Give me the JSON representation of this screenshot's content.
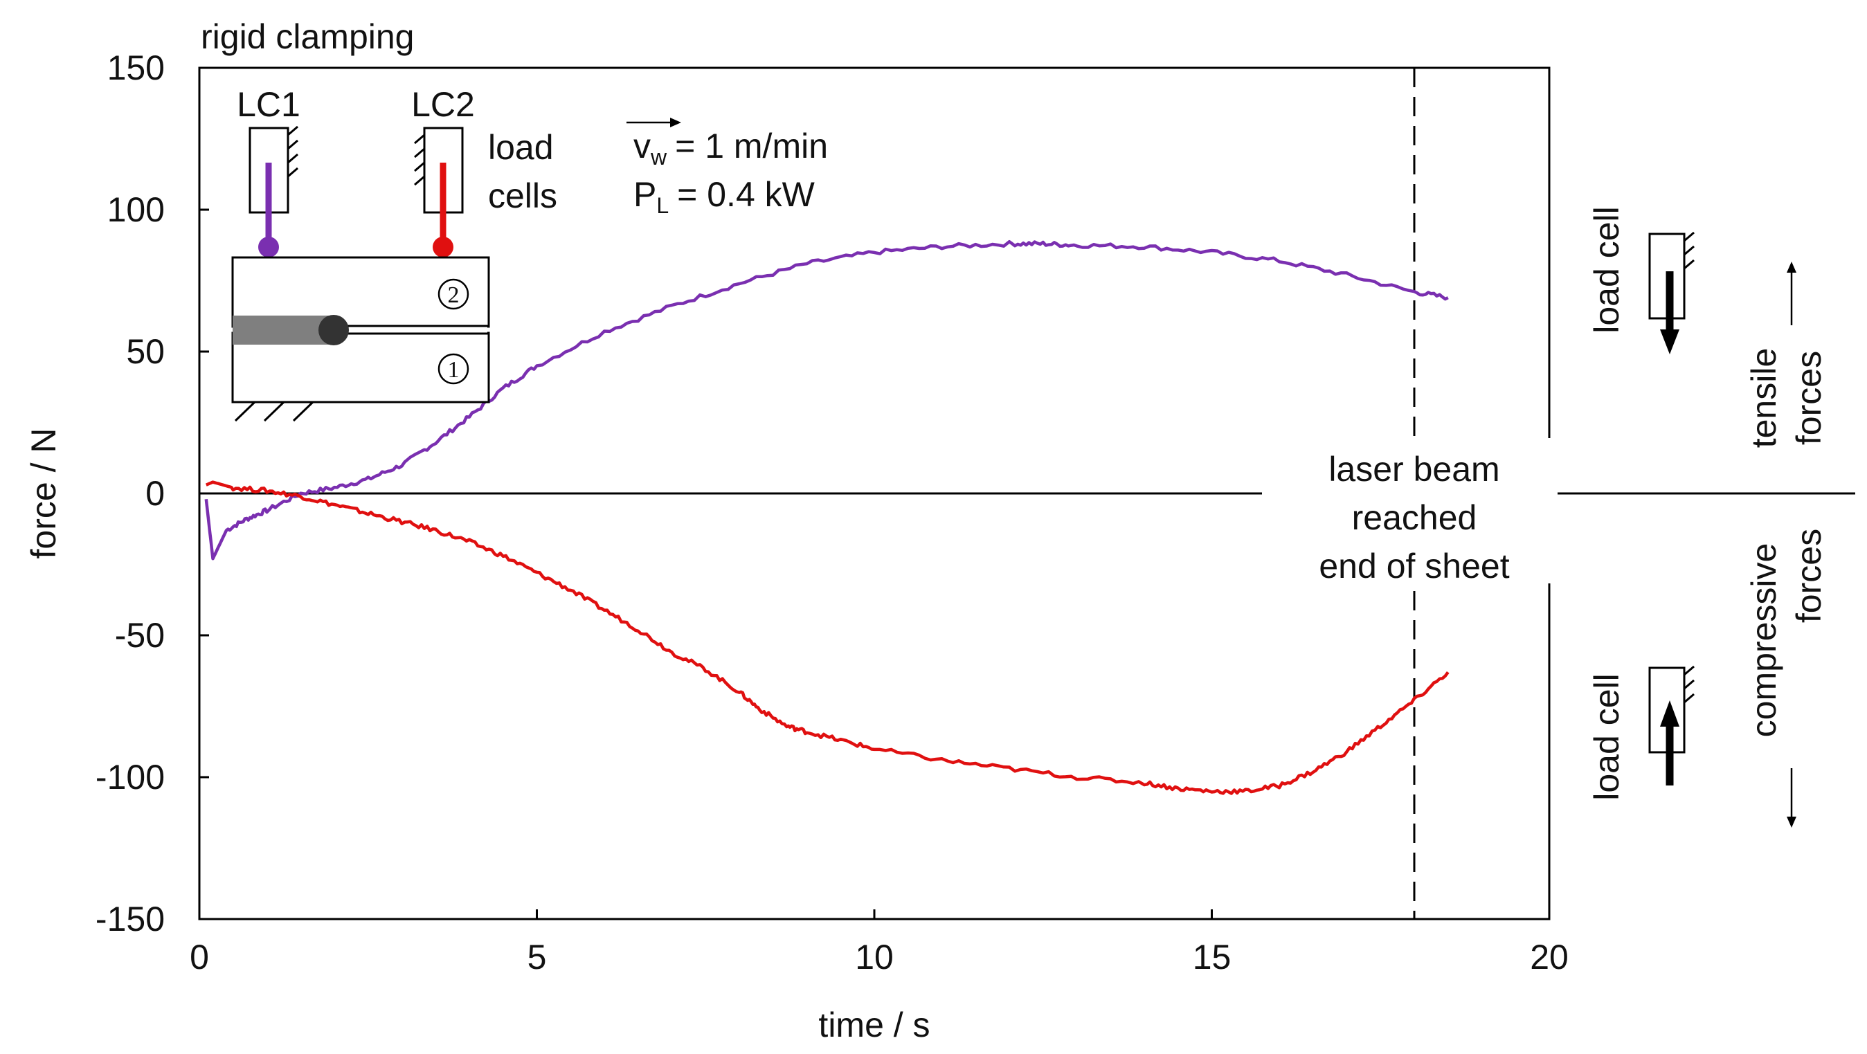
{
  "chart_data": {
    "type": "line",
    "title": "rigid clamping",
    "xlabel": "time / s",
    "ylabel": "force / N",
    "xlim": [
      0,
      20
    ],
    "ylim": [
      -150,
      150
    ],
    "xticks": [
      0,
      5,
      10,
      15,
      20
    ],
    "yticks": [
      -150,
      -100,
      -50,
      0,
      50,
      100,
      150
    ],
    "xtick_labels": [
      "0",
      "5",
      "10",
      "15",
      "20"
    ],
    "ytick_labels": [
      "-150",
      "-100",
      "-50",
      "0",
      "50",
      "100",
      "150"
    ],
    "grid": false,
    "series": [
      {
        "name": "LC1",
        "color": "#7a2fb0",
        "x": [
          0.1,
          0.2,
          0.4,
          0.7,
          1.0,
          1.5,
          2.0,
          2.5,
          3.0,
          3.5,
          4.0,
          4.5,
          5.0,
          6.0,
          7.0,
          8.0,
          9.0,
          10.0,
          11.0,
          12.0,
          12.5,
          13.0,
          14.0,
          15.0,
          16.0,
          17.0,
          18.0,
          18.5
        ],
        "y": [
          -2,
          -23,
          -13,
          -9,
          -6,
          0,
          2,
          5,
          10,
          18,
          27,
          37,
          45,
          57,
          66,
          74,
          81,
          85,
          87,
          88,
          88,
          87.5,
          87,
          85,
          82,
          77,
          71,
          69
        ]
      },
      {
        "name": "LC2",
        "color": "#e01010",
        "x": [
          0.1,
          0.2,
          0.5,
          1.0,
          1.5,
          2.0,
          2.5,
          3.0,
          3.5,
          4.0,
          4.5,
          5.0,
          5.5,
          6.0,
          6.5,
          7.0,
          7.5,
          8.0,
          8.3,
          8.7,
          9.0,
          9.5,
          10.0,
          11.0,
          12.0,
          13.0,
          14.0,
          14.5,
          15.0,
          15.5,
          16.0,
          16.5,
          17.0,
          17.5,
          18.0,
          18.5
        ],
        "y": [
          3,
          4,
          2,
          1,
          -1,
          -4,
          -7,
          -10,
          -13,
          -17,
          -22,
          -28,
          -34,
          -41,
          -48,
          -56,
          -62,
          -70,
          -76,
          -82,
          -84,
          -87,
          -90,
          -94,
          -97,
          -100,
          -102,
          -104,
          -105,
          -105,
          -103,
          -98,
          -91,
          -82,
          -73,
          -63
        ]
      }
    ],
    "annotations": {
      "laser_end": {
        "x": 18,
        "label_lines": [
          "laser beam",
          "reached",
          "end of sheet"
        ]
      },
      "load_cells_text": [
        "load",
        "cells"
      ],
      "lc1_label": "LC1",
      "lc2_label": "LC2",
      "v_line": "v",
      "v_sub": "w",
      "v_value": "= 1 m/min",
      "p_line": "P",
      "p_sub": "L",
      "p_value": "= 0.4 kW",
      "sheet_1": "1",
      "sheet_2": "2"
    },
    "side_legend": {
      "load_cell": "load cell",
      "tensile": "tensile",
      "compressive": "compressive",
      "forces": "forces"
    }
  },
  "colors": {
    "lc1": "#7a2fb0",
    "lc2": "#e01010",
    "weld": "#7f7f7f",
    "weld_head": "#333333"
  }
}
